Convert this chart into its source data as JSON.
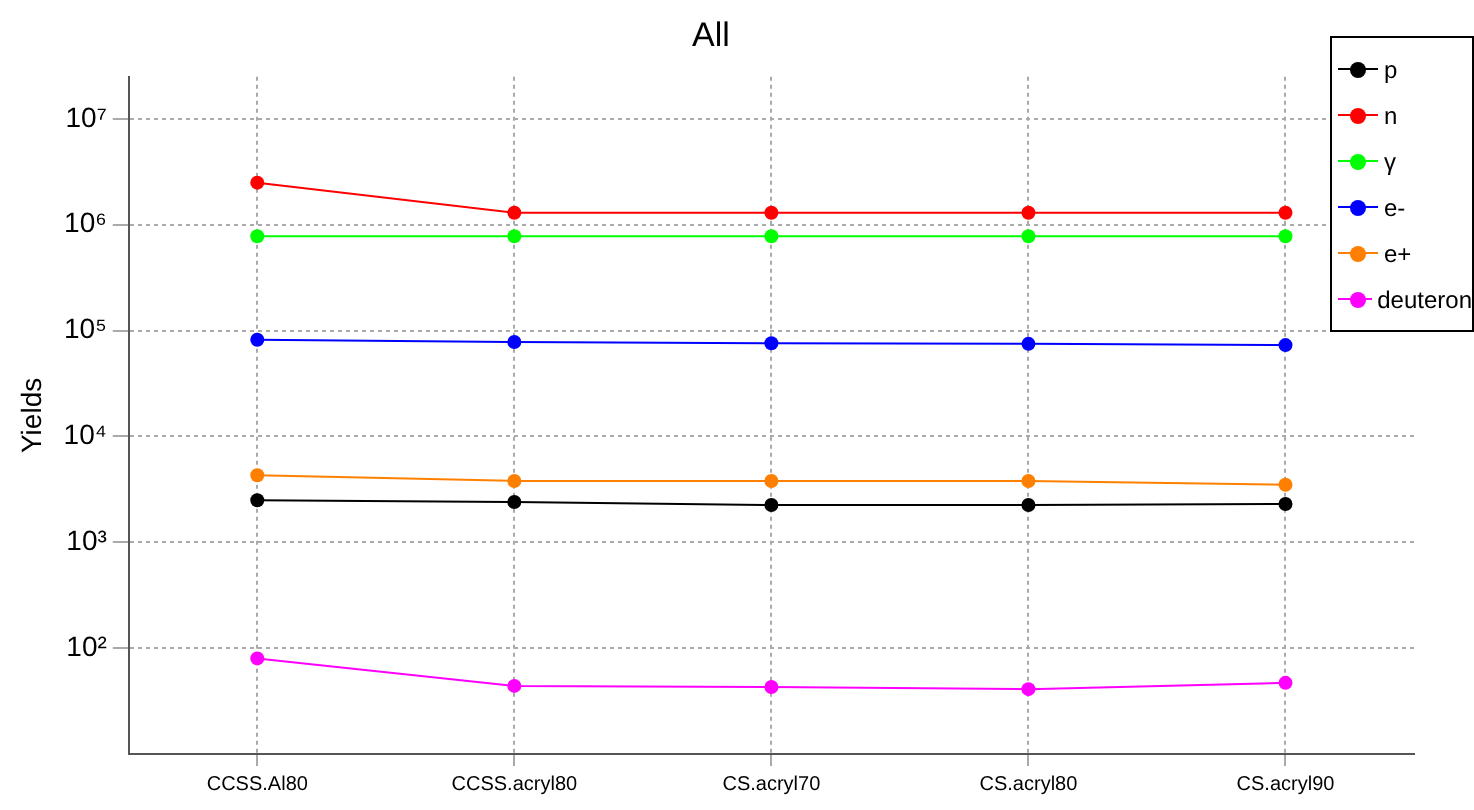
{
  "chart_data": {
    "type": "line",
    "title": "All",
    "ylabel": "Yields",
    "categories": [
      "CCSS.Al80",
      "CCSS.acryl80",
      "CS.acryl70",
      "CS.acryl80",
      "CS.acryl90"
    ],
    "series": [
      {
        "name": "p",
        "color": "#000000",
        "values": [
          2500,
          2400,
          2250,
          2250,
          2300
        ]
      },
      {
        "name": "n",
        "color": "#ff0000",
        "values": [
          2500000,
          1300000,
          1300000,
          1300000,
          1300000
        ]
      },
      {
        "name": "γ",
        "color": "#00ff00",
        "values": [
          780000,
          780000,
          780000,
          780000,
          780000
        ]
      },
      {
        "name": "e-",
        "color": "#0000ff",
        "values": [
          82000,
          78000,
          76000,
          75000,
          73000
        ]
      },
      {
        "name": "e+",
        "color": "#ff8000",
        "values": [
          4300,
          3800,
          3800,
          3800,
          3500
        ]
      },
      {
        "name": "deuteron",
        "color": "#ff00ff",
        "values": [
          80,
          44,
          43,
          41,
          47
        ]
      }
    ],
    "log": "y",
    "ylim": [
      10,
      25000000
    ],
    "yticks": [
      {
        "value": 100,
        "label": "10²"
      },
      {
        "value": 1000,
        "label": "10³"
      },
      {
        "value": 10000,
        "label": "10⁴"
      },
      {
        "value": 100000,
        "label": "10⁵"
      },
      {
        "value": 1000000,
        "label": "10⁶"
      },
      {
        "value": 10000000,
        "label": "10⁷"
      }
    ],
    "grid": true,
    "legend": "top right",
    "marker": "circle",
    "line_style": "solid"
  }
}
